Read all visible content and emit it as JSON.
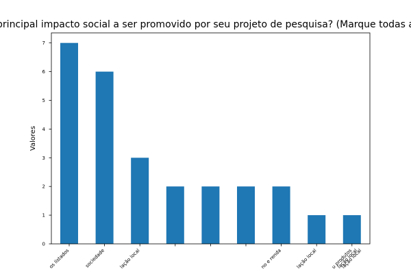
{
  "chart_data": {
    "type": "bar",
    "title": "principal impacto social a ser promovido por seu projeto de pesquisa? (Marque todas a",
    "xlabel": "",
    "ylabel": "Valores",
    "categories": [
      "os listados",
      "sociedade",
      "lação local",
      "",
      "",
      "",
      "no e renda",
      "lação local",
      "u produtos"
    ],
    "values": [
      7,
      6,
      3,
      2,
      2,
      2,
      2,
      1,
      1
    ],
    "extra_tick_text": [
      "lação local",
      "lação local"
    ],
    "yticks": [
      0,
      1,
      2,
      3,
      4,
      5,
      6,
      7
    ],
    "ylim": [
      0,
      7.35
    ],
    "bar_color": "#1f77b4",
    "grid": false,
    "legend": "none"
  }
}
